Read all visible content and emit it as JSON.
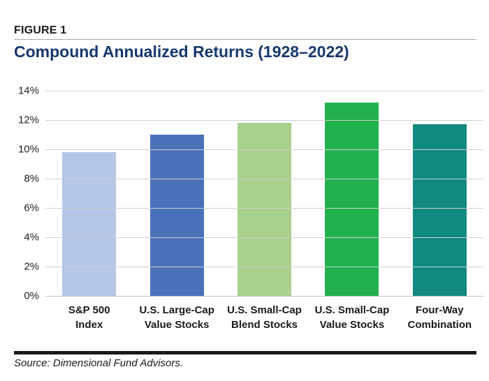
{
  "figure": {
    "label": "FIGURE 1",
    "source": "Source: Dimensional Fund Advisors."
  },
  "colors": {
    "title_navy": "#17386e",
    "gridline": "#cfcfcf",
    "rule_gray": "#a8a8a8",
    "rule_black": "#1a1a1a"
  },
  "chart_data": {
    "type": "bar",
    "title": "Compound Annualized Returns (1928–2022)",
    "categories": [
      "S&P 500\nIndex",
      "U.S. Large-Cap\nValue Stocks",
      "U.S. Small-Cap\nBlend Stocks",
      "U.S. Small-Cap\nValue Stocks",
      "Four-Way\nCombination"
    ],
    "values": [
      9.8,
      11.0,
      11.8,
      13.2,
      11.7
    ],
    "bar_colors": [
      "#b4c7e7",
      "#4a72b8",
      "#a9d18e",
      "#21b24e",
      "#118880"
    ],
    "xlabel": "",
    "ylabel": "",
    "ylim": [
      0,
      14
    ],
    "ytick_labels_top_to_bottom": [
      "14%",
      "12%",
      "10%",
      "8%",
      "6%",
      "4%",
      "2%",
      "0%"
    ],
    "grid": "horizontal",
    "legend": "none"
  }
}
